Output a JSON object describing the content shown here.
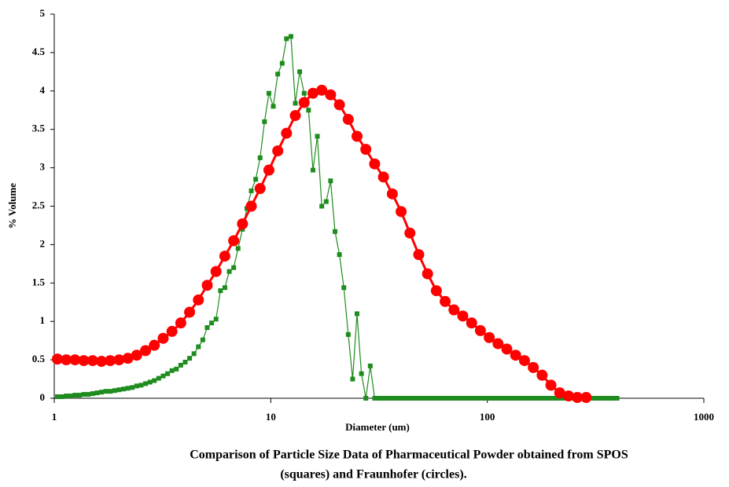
{
  "chart_data": {
    "type": "line",
    "x_label": "Diameter (um)",
    "y_label": "% Volume",
    "caption": [
      "Comparison of Particle Size Data of Pharmaceutical Powder obtained from SPOS",
      "(squares) and Fraunhofer (circles)."
    ],
    "xlim": [
      1,
      1000
    ],
    "xticks": [
      1,
      10,
      100,
      1000
    ],
    "xscale": "log",
    "ylim": [
      0,
      5
    ],
    "yticks": [
      0,
      0.5,
      1,
      1.5,
      2,
      2.5,
      3,
      3.5,
      4,
      4.5,
      5
    ],
    "grid": false,
    "series": [
      {
        "color": "#1e8c1e",
        "marker": "square",
        "x": [
          1.034,
          1.084,
          1.136,
          1.191,
          1.247,
          1.307,
          1.369,
          1.435,
          1.504,
          1.576,
          1.652,
          1.731,
          1.814,
          1.901,
          1.993,
          2.089,
          2.188,
          2.293,
          2.403,
          2.518,
          2.64,
          2.767,
          2.899,
          3.038,
          3.184,
          3.337,
          3.497,
          3.665,
          3.84,
          4.024,
          4.217,
          4.419,
          4.632,
          4.854,
          5.087,
          5.331,
          5.587,
          5.855,
          6.136,
          6.431,
          6.739,
          7.062,
          7.401,
          7.756,
          8.128,
          8.518,
          8.926,
          9.354,
          9.802,
          10.27,
          10.77,
          11.29,
          11.82,
          12.39,
          12.98,
          13.6,
          14.26,
          14.94,
          15.66,
          16.41,
          17.2,
          18.03,
          18.89,
          19.8,
          20.75,
          21.75,
          22.79,
          23.88,
          25.02,
          26.22,
          27.48,
          28.8,
          30.18,
          31.63,
          33.15,
          34.74,
          36.41,
          38.16,
          39.99,
          41.91,
          43.91,
          46.02,
          48.23,
          50.55,
          52.97,
          55.51,
          58.17,
          60.96,
          63.89,
          66.96,
          70.16,
          73.53,
          77.06,
          80.76,
          84.63,
          88.69,
          92.93,
          97.39,
          102.1,
          107.0,
          112.1,
          117.5,
          123.1,
          129.0,
          135.2,
          141.7,
          148.5,
          155.6,
          163.1,
          170.9,
          179.1,
          187.7,
          196.7,
          206.1,
          216.0,
          226.4,
          237.2,
          248.6,
          260.5,
          273.0,
          286.1,
          299.8,
          314.2,
          329.3,
          345.1,
          361.7,
          378.9,
          397.1
        ],
        "values": [
          0.02,
          0.02,
          0.03,
          0.03,
          0.04,
          0.04,
          0.05,
          0.05,
          0.06,
          0.07,
          0.08,
          0.09,
          0.09,
          0.1,
          0.11,
          0.12,
          0.13,
          0.14,
          0.16,
          0.17,
          0.19,
          0.21,
          0.23,
          0.26,
          0.29,
          0.32,
          0.36,
          0.38,
          0.43,
          0.47,
          0.52,
          0.58,
          0.67,
          0.76,
          0.92,
          0.98,
          1.03,
          1.4,
          1.44,
          1.65,
          1.7,
          1.95,
          2.2,
          2.47,
          2.7,
          2.85,
          3.13,
          3.6,
          3.97,
          3.8,
          4.22,
          4.36,
          4.68,
          4.71,
          3.84,
          4.25,
          3.97,
          3.75,
          2.97,
          3.41,
          2.5,
          2.56,
          2.83,
          2.17,
          1.87,
          1.44,
          0.83,
          0.25,
          1.1,
          0.32,
          0,
          0.42,
          0,
          0,
          0,
          0,
          0,
          0,
          0,
          0,
          0,
          0,
          0,
          0,
          0,
          0,
          0,
          0,
          0,
          0,
          0,
          0,
          0,
          0,
          0,
          0,
          0,
          0,
          0,
          0,
          0,
          0,
          0,
          0,
          0,
          0,
          0,
          0,
          0,
          0,
          0,
          0,
          0,
          0,
          0,
          0,
          0,
          0,
          0,
          0,
          0,
          0,
          0,
          0,
          0,
          0,
          0,
          0
        ]
      },
      {
        "color": "#ff0000",
        "marker": "circle",
        "x": [
          1.034,
          1.136,
          1.247,
          1.369,
          1.504,
          1.652,
          1.814,
          1.993,
          2.188,
          2.403,
          2.64,
          2.899,
          3.184,
          3.497,
          3.84,
          4.217,
          4.632,
          5.087,
          5.587,
          6.136,
          6.739,
          7.401,
          8.128,
          8.926,
          9.802,
          10.77,
          11.82,
          12.98,
          14.26,
          15.66,
          17.2,
          18.89,
          20.75,
          22.79,
          25.02,
          27.48,
          30.18,
          33.15,
          36.41,
          39.99,
          43.91,
          48.23,
          52.97,
          58.17,
          63.89,
          70.16,
          77.06,
          84.63,
          92.93,
          102.1,
          112.1,
          123.1,
          135.2,
          148.5,
          163.1,
          179.1,
          196.7,
          216.0,
          237.2,
          260.5,
          286.1
        ],
        "values": [
          0.51,
          0.5,
          0.5,
          0.49,
          0.49,
          0.48,
          0.49,
          0.5,
          0.52,
          0.56,
          0.62,
          0.69,
          0.78,
          0.87,
          0.98,
          1.12,
          1.28,
          1.47,
          1.65,
          1.85,
          2.05,
          2.27,
          2.5,
          2.73,
          2.97,
          3.22,
          3.45,
          3.68,
          3.85,
          3.97,
          4.01,
          3.95,
          3.82,
          3.63,
          3.41,
          3.24,
          3.05,
          2.88,
          2.66,
          2.43,
          2.15,
          1.87,
          1.62,
          1.4,
          1.26,
          1.15,
          1.07,
          0.98,
          0.88,
          0.79,
          0.71,
          0.64,
          0.56,
          0.49,
          0.4,
          0.3,
          0.17,
          0.07,
          0.03,
          0.01,
          0.01
        ]
      }
    ]
  }
}
